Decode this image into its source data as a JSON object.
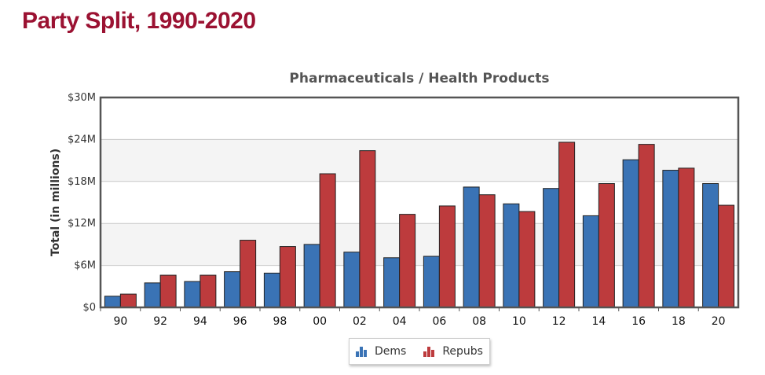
{
  "page_title": "Party Split, 1990-2020",
  "chart_data": {
    "type": "bar",
    "title": "Pharmaceuticals / Health Products",
    "xlabel": "",
    "ylabel": "Total (in millions)",
    "categories": [
      "90",
      "92",
      "94",
      "96",
      "98",
      "00",
      "02",
      "04",
      "06",
      "08",
      "10",
      "12",
      "14",
      "16",
      "18",
      "20"
    ],
    "series": [
      {
        "name": "Dems",
        "color": "#3a73b5",
        "values": [
          1.6,
          3.5,
          3.7,
          5.1,
          4.9,
          9.0,
          7.9,
          7.1,
          7.3,
          17.2,
          14.8,
          17.0,
          13.1,
          21.1,
          19.6,
          17.7
        ]
      },
      {
        "name": "Repubs",
        "color": "#bd3b3d",
        "values": [
          1.9,
          4.6,
          4.6,
          9.6,
          8.7,
          19.1,
          22.4,
          13.3,
          14.5,
          16.1,
          13.7,
          23.6,
          17.7,
          23.3,
          19.9,
          14.6
        ]
      }
    ],
    "ylim": [
      0,
      30
    ],
    "yticks": [
      0,
      6,
      12,
      18,
      24,
      30
    ],
    "ytick_labels": [
      "$0",
      "$6M",
      "$12M",
      "$18M",
      "$24M",
      "$30M"
    ],
    "grid": true,
    "legend_position": "bottom-center"
  },
  "legend": {
    "items": [
      {
        "label": "Dems",
        "icon": "bar-chart-icon",
        "color": "#3a73b5"
      },
      {
        "label": "Repubs",
        "icon": "bar-chart-icon",
        "color": "#bd3b3d"
      }
    ]
  }
}
